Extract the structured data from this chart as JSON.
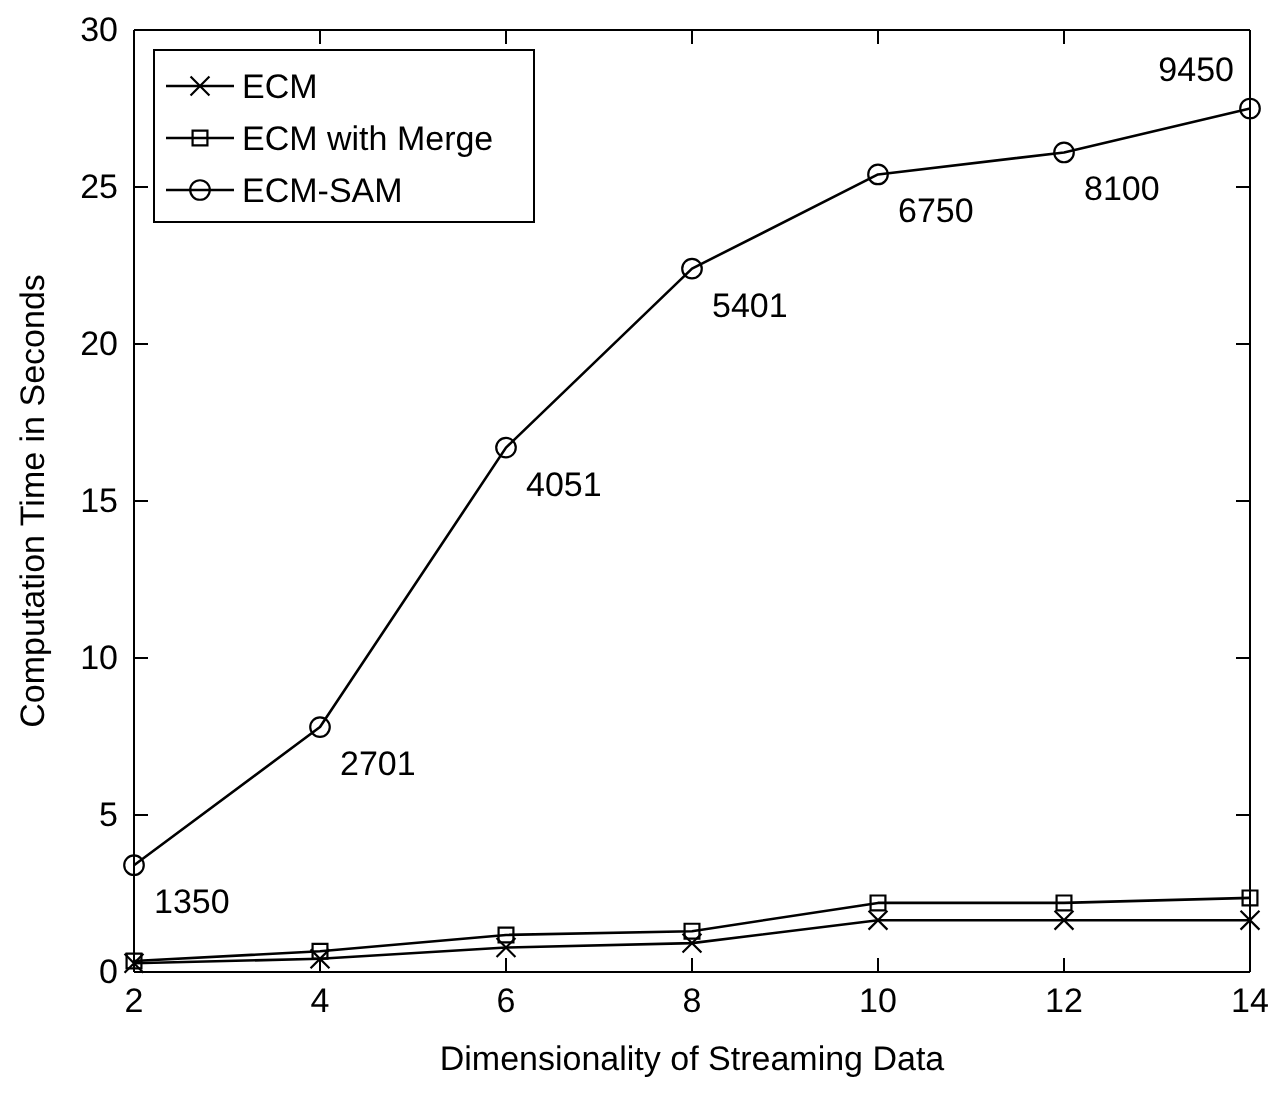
{
  "chart_data": {
    "type": "line",
    "xlabel": "Dimensionality of Streaming Data",
    "ylabel": "Computation Time in Seconds",
    "x": [
      2,
      4,
      6,
      8,
      10,
      12,
      14
    ],
    "series": [
      {
        "name": "ECM",
        "color": "#000000",
        "marker": "cross",
        "values": [
          0.28,
          0.42,
          0.78,
          0.92,
          1.65,
          1.65,
          1.65
        ]
      },
      {
        "name": "ECM with Merge",
        "color": "#000000",
        "marker": "square",
        "values": [
          0.35,
          0.66,
          1.18,
          1.3,
          2.2,
          2.2,
          2.36
        ]
      },
      {
        "name": "ECM-SAM",
        "color": "#000000",
        "marker": "circle",
        "values": [
          3.4,
          7.8,
          16.7,
          22.4,
          25.4,
          26.1,
          27.5
        ]
      }
    ],
    "annotations": [
      {
        "text": "1350",
        "x": 2,
        "y": 3.4
      },
      {
        "text": "2701",
        "x": 4,
        "y": 7.8
      },
      {
        "text": "4051",
        "x": 6,
        "y": 16.7
      },
      {
        "text": "5401",
        "x": 8,
        "y": 22.4
      },
      {
        "text": "6750",
        "x": 10,
        "y": 25.4
      },
      {
        "text": "8100",
        "x": 12,
        "y": 26.1
      },
      {
        "text": "9450",
        "x": 14,
        "y": 27.5
      }
    ],
    "xlim": [
      2,
      14
    ],
    "xticks": [
      2,
      4,
      6,
      8,
      10,
      12,
      14
    ],
    "ylim": [
      0,
      30
    ],
    "yticks": [
      0,
      5,
      10,
      15,
      20,
      25,
      30
    ],
    "grid": false,
    "legend": "top left"
  }
}
